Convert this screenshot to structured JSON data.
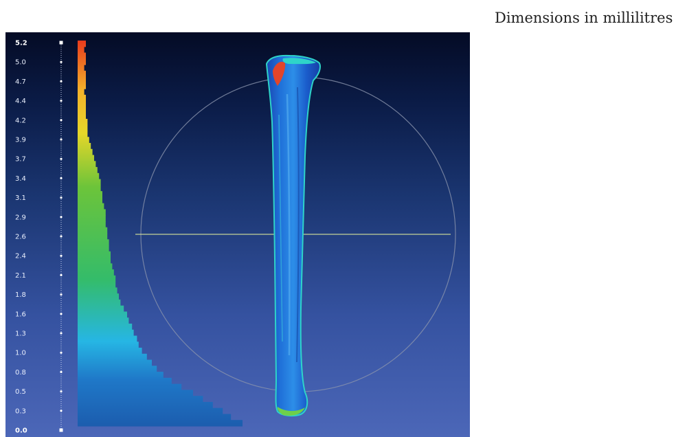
{
  "caption": "Dimensions in millilitres",
  "scale": {
    "ticks": [
      "5.2",
      "5.0",
      "4.7",
      "4.4",
      "4.2",
      "3.9",
      "3.7",
      "3.4",
      "3.1",
      "2.9",
      "2.6",
      "2.4",
      "2.1",
      "1.8",
      "1.6",
      "1.3",
      "1.0",
      "0.8",
      "0.5",
      "0.3",
      "0.0"
    ],
    "min": 0.0,
    "max": 5.2
  },
  "histogram": {
    "fractions_of_max": [
      0.05,
      0.04,
      0.05,
      0.05,
      0.04,
      0.05,
      0.05,
      0.05,
      0.04,
      0.05,
      0.05,
      0.05,
      0.05,
      0.06,
      0.06,
      0.06,
      0.07,
      0.08,
      0.09,
      0.1,
      0.11,
      0.12,
      0.13,
      0.14,
      0.14,
      0.15,
      0.15,
      0.16,
      0.17,
      0.17,
      0.17,
      0.18,
      0.18,
      0.19,
      0.19,
      0.2,
      0.2,
      0.21,
      0.22,
      0.23,
      0.23,
      0.24,
      0.25,
      0.26,
      0.28,
      0.3,
      0.31,
      0.33,
      0.34,
      0.36,
      0.37,
      0.39,
      0.42,
      0.45,
      0.48,
      0.52,
      0.57,
      0.63,
      0.7,
      0.76,
      0.82,
      0.88,
      0.93,
      1.0
    ],
    "colors": [
      "#e93a1c",
      "#f0651a",
      "#f4b22a",
      "#e6d629",
      "#a9cf33",
      "#5fc23b",
      "#3cba52",
      "#31c4a2",
      "#26b6e4",
      "#2299e0",
      "#1f78c8",
      "#1c5dae"
    ]
  },
  "model": {
    "body_color": "#1e58c8",
    "hot_color": "#e2452a",
    "accent_color": "#2ed4c9"
  }
}
